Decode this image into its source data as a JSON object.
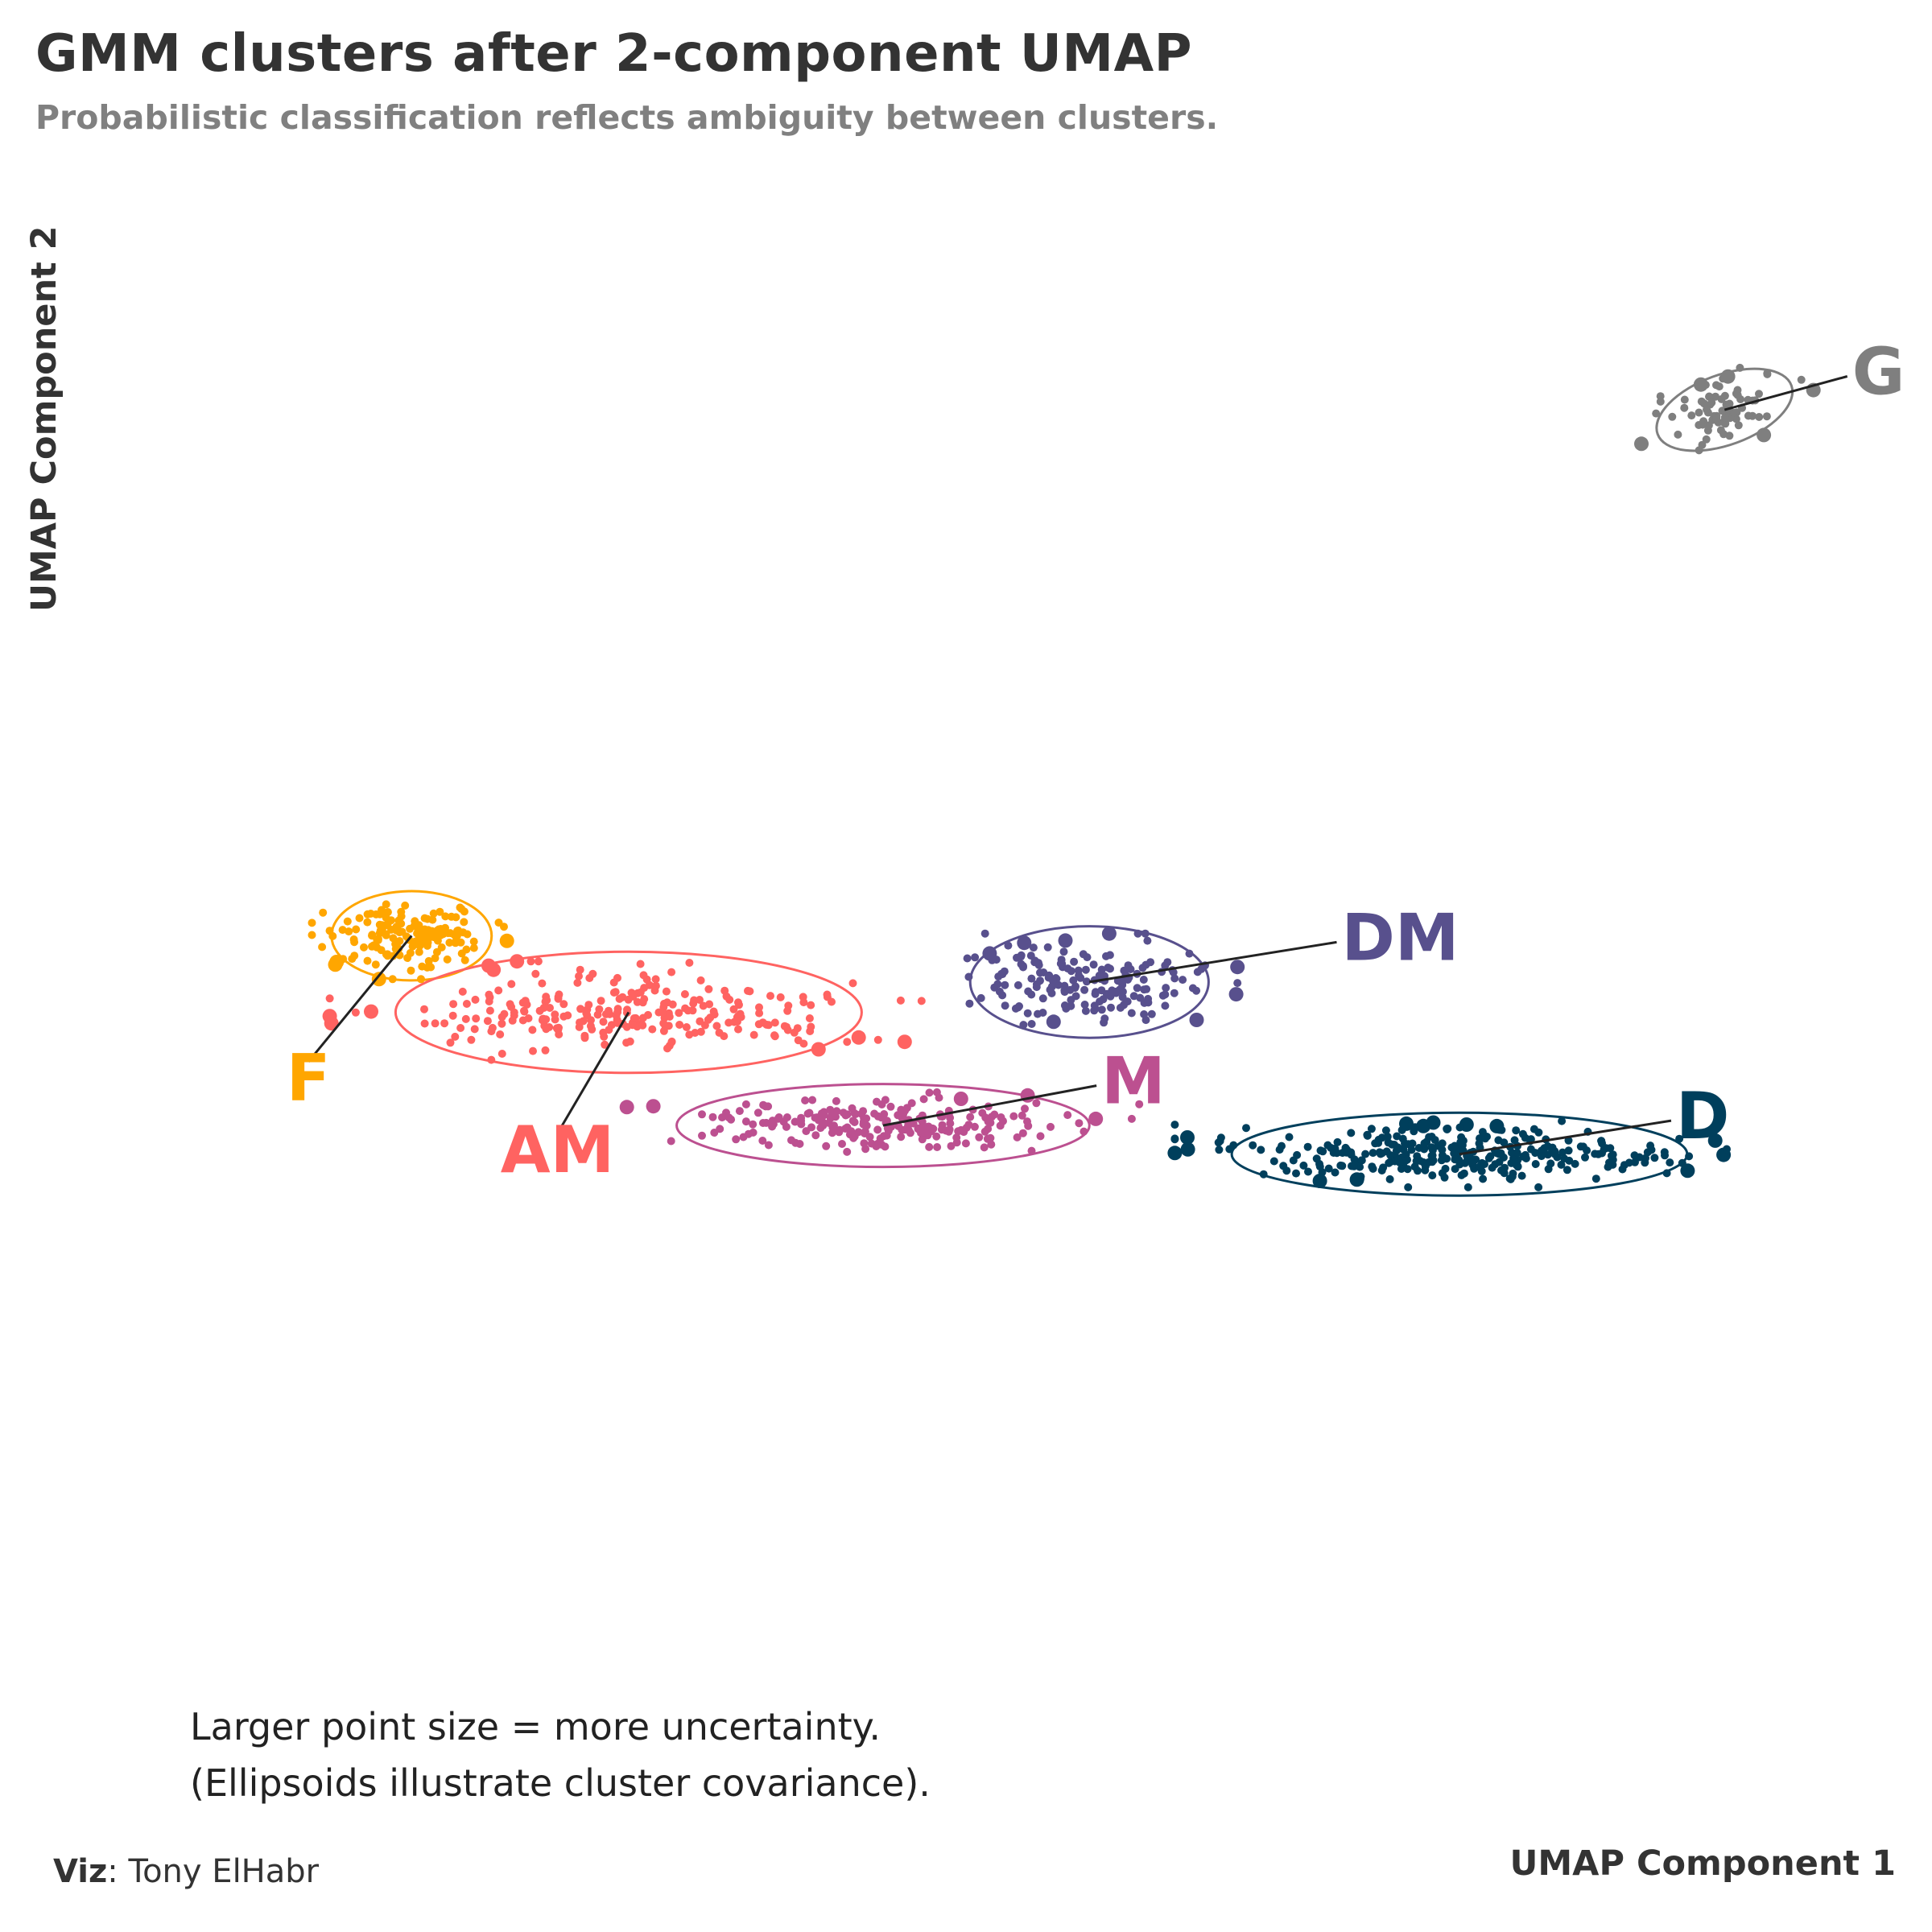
{
  "title": "GMM clusters after 2-component UMAP",
  "subtitle": "Probabilistic classification reflects ambiguity between clusters.",
  "note_lines": [
    "Larger point size = more uncertainty.",
    "(Ellipsoids illustrate cluster covariance)."
  ],
  "caption": {
    "label": "Viz",
    "text": ": Tony ElHabr"
  },
  "chart_data": {
    "type": "scatter",
    "title": "GMM clusters after 2-component UMAP",
    "subtitle": "Probabilistic classification reflects ambiguity between clusters.",
    "xlabel": "UMAP Component 1",
    "ylabel": "UMAP Component 2",
    "xlim": [
      0,
      100
    ],
    "ylim": [
      0,
      100
    ],
    "grid": false,
    "legend": "none",
    "series": [
      {
        "name": "G",
        "color": "#7f7f7f",
        "center": [
          90.6,
          85.4
        ],
        "spread": [
          3.2,
          1.4
        ],
        "tilt": 20,
        "n": 80,
        "ellipse": {
          "rx": 4.0,
          "ry": 2.2,
          "angle": -20
        },
        "label_pos": [
          97.5,
          87.5
        ]
      },
      {
        "name": "F",
        "color": "#ffa600",
        "center": [
          16.8,
          52.4
        ],
        "spread": [
          3.5,
          1.7
        ],
        "tilt": 0,
        "n": 160,
        "ellipse": {
          "rx": 4.5,
          "ry": 2.8,
          "angle": 0
        },
        "label_pos": [
          11.0,
          44.5
        ]
      },
      {
        "name": "AM",
        "color": "#ff6361",
        "center": [
          29.0,
          47.6
        ],
        "spread": [
          10.5,
          2.0
        ],
        "tilt": 0,
        "n": 260,
        "ellipse": {
          "rx": 13.1,
          "ry": 3.8,
          "angle": 0
        },
        "label_pos": [
          25.0,
          40.0
        ]
      },
      {
        "name": "DM",
        "color": "#58508d",
        "center": [
          54.9,
          49.5
        ],
        "spread": [
          5.2,
          1.9
        ],
        "tilt": 0,
        "n": 180,
        "ellipse": {
          "rx": 6.7,
          "ry": 3.5,
          "angle": 0
        },
        "label_pos": [
          68.8,
          52.0
        ]
      },
      {
        "name": "M",
        "color": "#bc5090",
        "center": [
          43.3,
          40.5
        ],
        "spread": [
          9.0,
          1.3
        ],
        "tilt": 0,
        "n": 230,
        "ellipse": {
          "rx": 11.6,
          "ry": 2.6,
          "angle": 0
        },
        "label_pos": [
          55.3,
          43.0
        ]
      },
      {
        "name": "D",
        "color": "#003f5c",
        "center": [
          75.7,
          38.7
        ],
        "spread": [
          10.0,
          1.3
        ],
        "tilt": 0,
        "n": 320,
        "ellipse": {
          "rx": 12.8,
          "ry": 2.6,
          "angle": 0
        },
        "label_pos": [
          87.6,
          40.8
        ]
      }
    ]
  }
}
